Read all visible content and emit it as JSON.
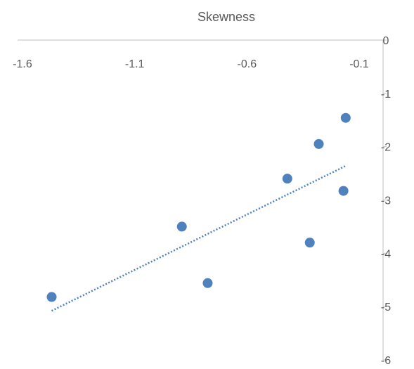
{
  "chart_data": {
    "type": "scatter",
    "title": "Skewness",
    "xlabel": "",
    "ylabel": "",
    "xlim": [
      -1.6,
      -0.1
    ],
    "ylim": [
      -6,
      0
    ],
    "x_ticks": [
      -1.6,
      -1.1,
      -0.6,
      -0.1
    ],
    "x_tick_labels": [
      "-1.6",
      "-1.1",
      "-0.6",
      "-0.1"
    ],
    "y_ticks": [
      0,
      -1,
      -2,
      -3,
      -4,
      -5,
      -6
    ],
    "y_tick_labels": [
      "0",
      "-1",
      "-2",
      "-3",
      "-4",
      "-5",
      "-6"
    ],
    "grid": false,
    "legend": "none",
    "series": [
      {
        "points": [
          {
            "x": -1.47,
            "y": -4.82
          },
          {
            "x": -0.89,
            "y": -3.5
          },
          {
            "x": -0.775,
            "y": -4.56
          },
          {
            "x": -0.42,
            "y": -2.6
          },
          {
            "x": -0.32,
            "y": -3.8
          },
          {
            "x": -0.28,
            "y": -1.95
          },
          {
            "x": -0.17,
            "y": -2.83
          },
          {
            "x": -0.16,
            "y": -1.46
          }
        ],
        "color": "#4f81bd"
      }
    ],
    "trendline": {
      "type": "linear",
      "style": "dotted",
      "color": "#4f81bd",
      "x_range": [
        -1.47,
        -0.16
      ],
      "y_range": [
        -5.08,
        -2.36
      ]
    },
    "axis_color": "#bfbfbf"
  }
}
